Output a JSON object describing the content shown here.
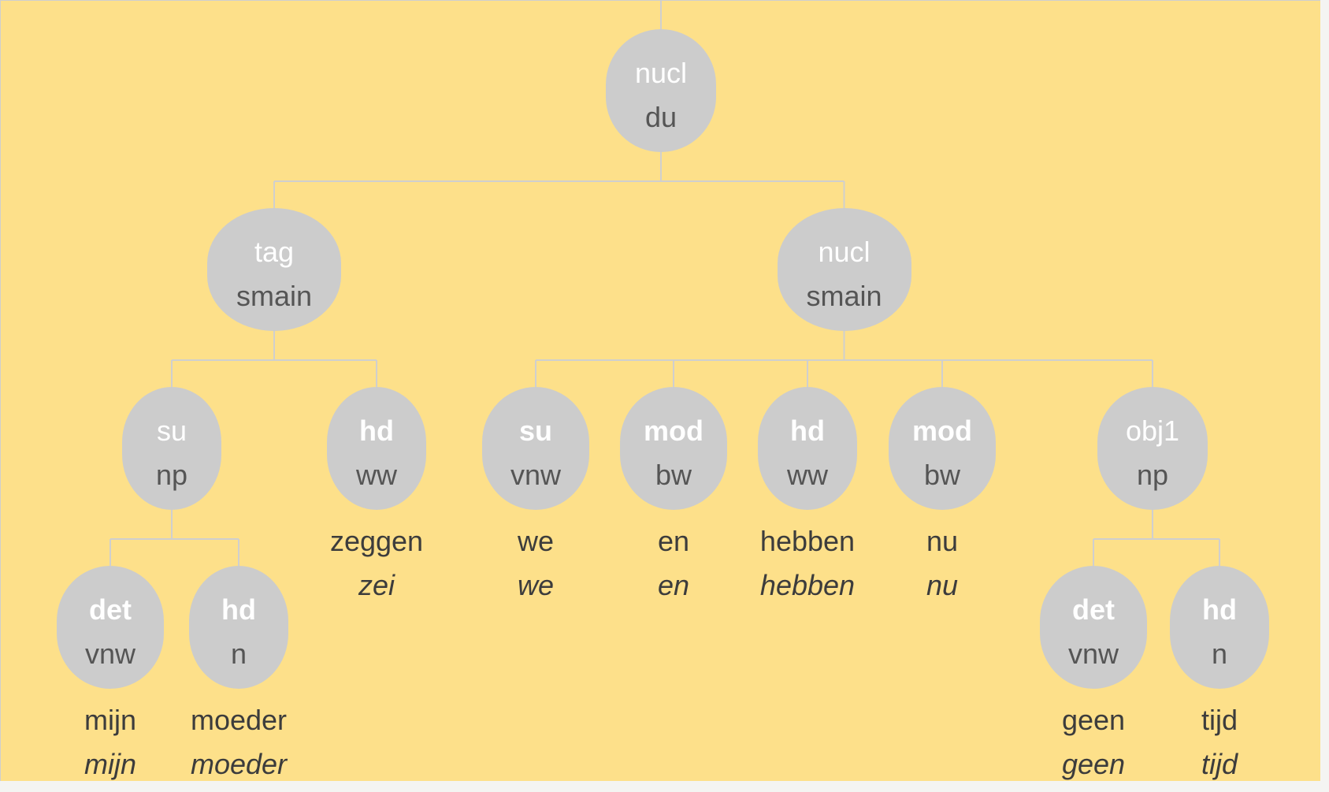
{
  "colors": {
    "background": "#fde08a",
    "node_fill": "#cccccc",
    "edge": "#cfcfcf",
    "relation_text": "#ffffff",
    "category_text": "#555555",
    "word_text": "#3c3c3c"
  },
  "tree": {
    "root": {
      "rel": "nucl",
      "head": false,
      "cat": "du",
      "children": [
        {
          "rel": "tag",
          "head": false,
          "cat": "smain",
          "children": [
            {
              "rel": "su",
              "head": false,
              "cat": "np",
              "children": [
                {
                  "rel": "det",
                  "head": true,
                  "cat": "vnw",
                  "word": "mijn",
                  "lemma": "mijn"
                },
                {
                  "rel": "hd",
                  "head": true,
                  "cat": "n",
                  "word": "moeder",
                  "lemma": "moeder"
                }
              ]
            },
            {
              "rel": "hd",
              "head": true,
              "cat": "ww",
              "word": "zeggen",
              "lemma": "zei"
            }
          ]
        },
        {
          "rel": "nucl",
          "head": false,
          "cat": "smain",
          "children": [
            {
              "rel": "su",
              "head": true,
              "cat": "vnw",
              "word": "we",
              "lemma": "we"
            },
            {
              "rel": "mod",
              "head": true,
              "cat": "bw",
              "word": "en",
              "lemma": "en"
            },
            {
              "rel": "hd",
              "head": true,
              "cat": "ww",
              "word": "hebben",
              "lemma": "hebben"
            },
            {
              "rel": "mod",
              "head": true,
              "cat": "bw",
              "word": "nu",
              "lemma": "nu"
            },
            {
              "rel": "obj1",
              "head": false,
              "cat": "np",
              "children": [
                {
                  "rel": "det",
                  "head": true,
                  "cat": "vnw",
                  "word": "geen",
                  "lemma": "geen"
                },
                {
                  "rel": "hd",
                  "head": true,
                  "cat": "n",
                  "word": "tijd",
                  "lemma": "tijd"
                }
              ]
            }
          ]
        }
      ]
    }
  }
}
